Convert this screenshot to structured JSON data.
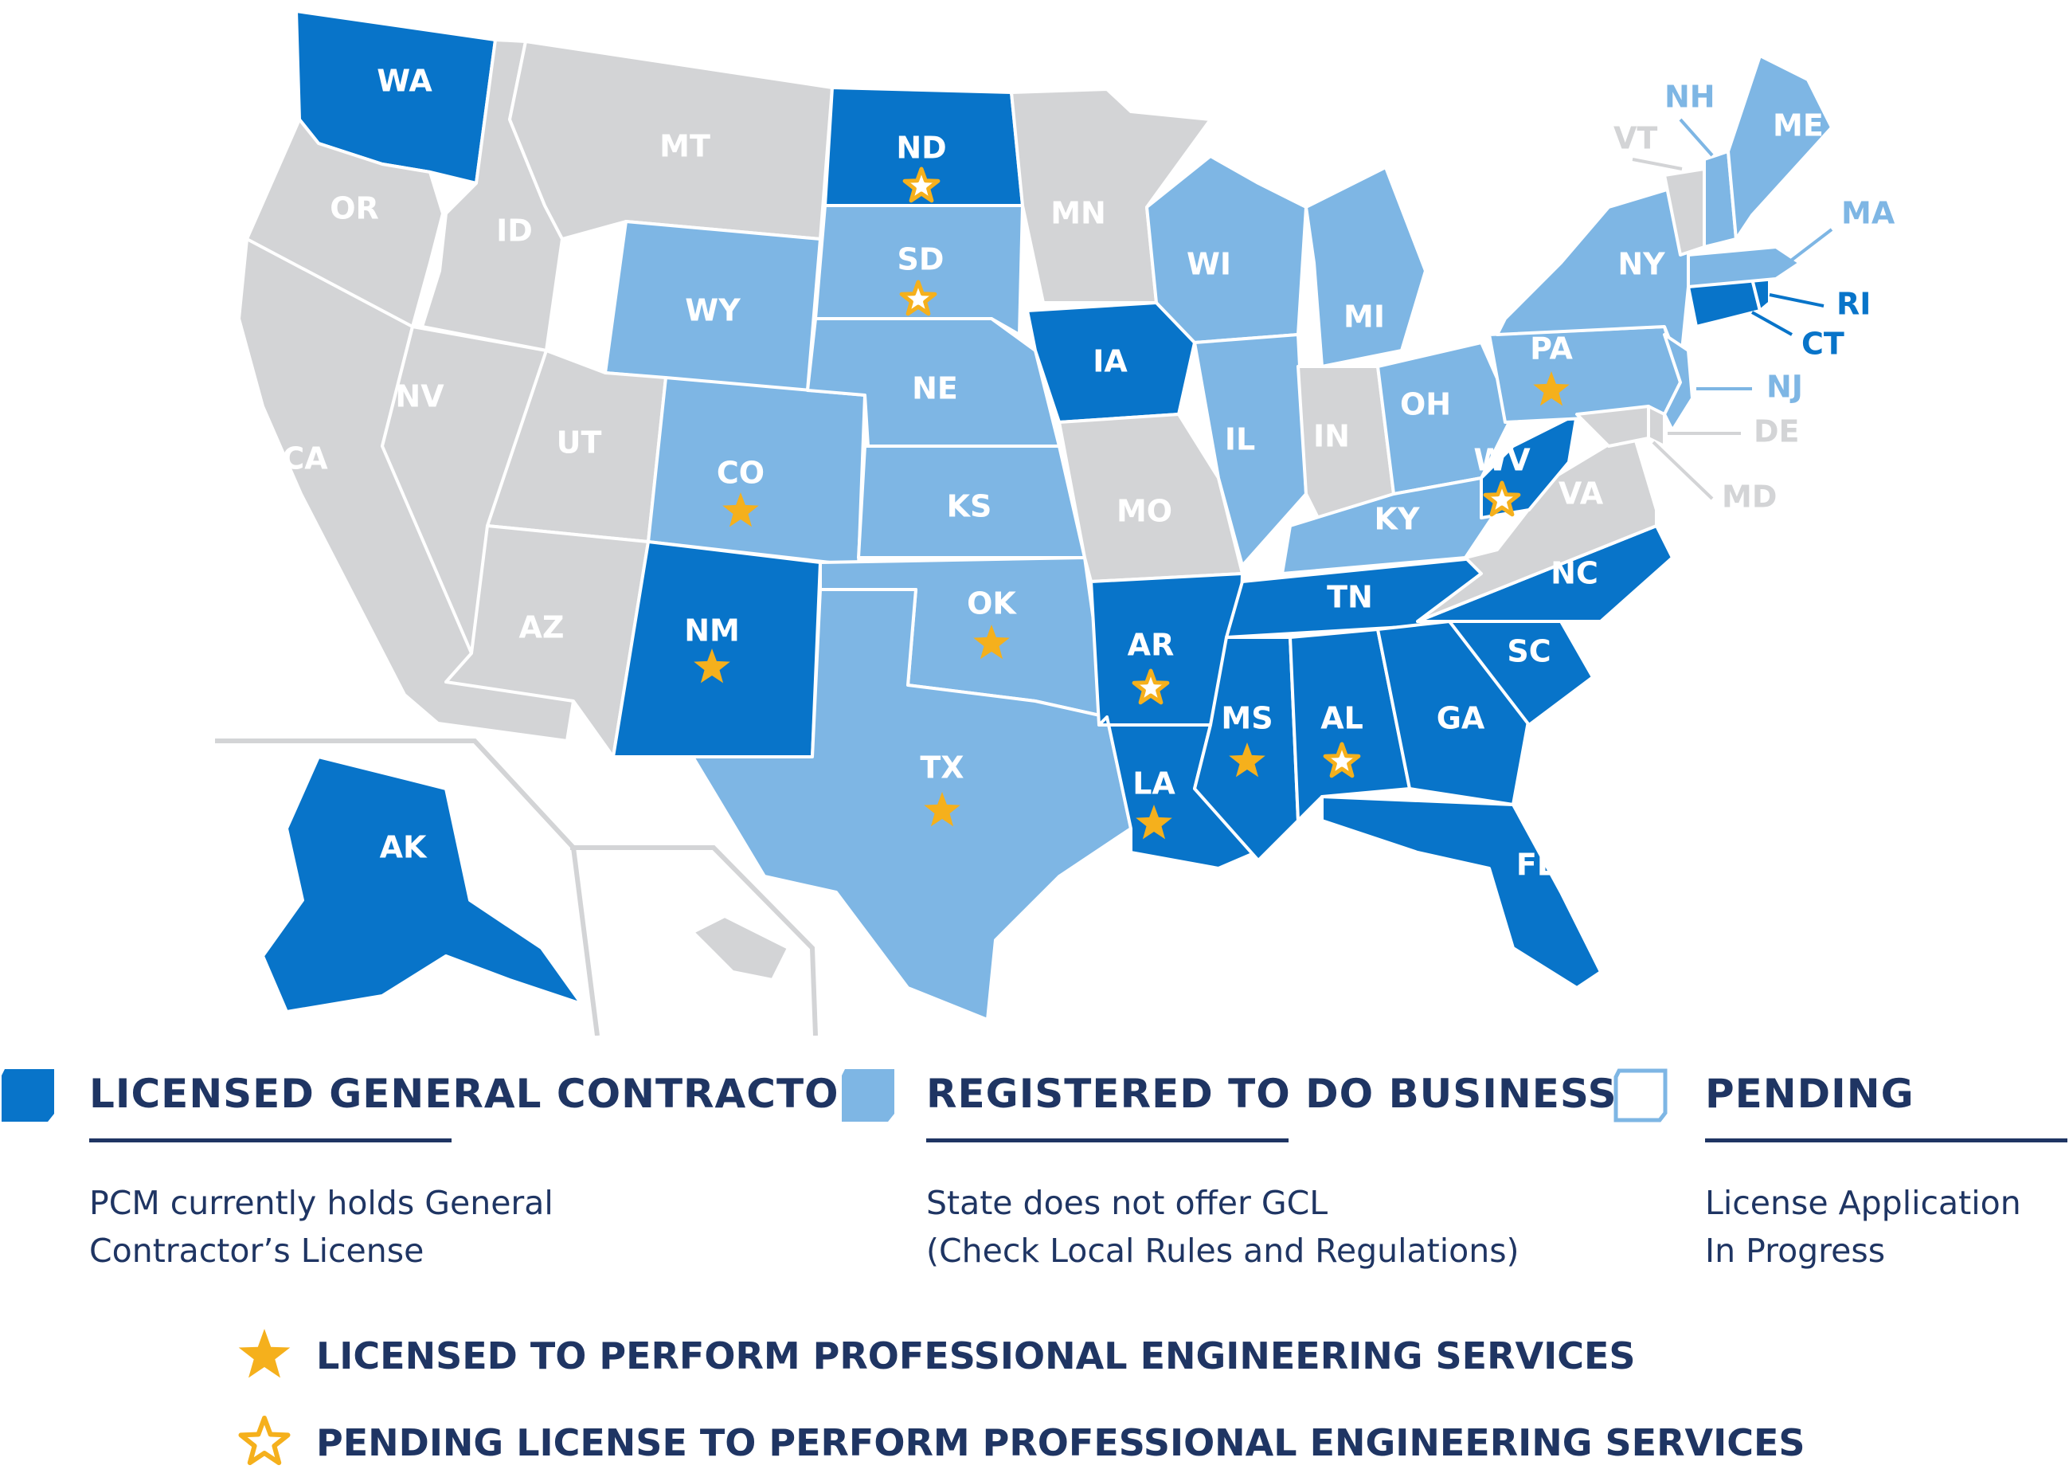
{
  "colors": {
    "licensed": "#0874c9",
    "registered": "#7eb6e4",
    "none": "#d3d4d6",
    "star": "#f5b01c",
    "navy": "#1f3563",
    "inset_line": "#d3d4d6"
  },
  "states": [
    {
      "id": "WA",
      "label": "WA",
      "status": "licensed",
      "star": "none"
    },
    {
      "id": "OR",
      "label": "OR",
      "status": "none",
      "star": "none"
    },
    {
      "id": "CA",
      "label": "CA",
      "status": "none",
      "star": "none"
    },
    {
      "id": "ID",
      "label": "ID",
      "status": "none",
      "star": "none"
    },
    {
      "id": "NV",
      "label": "NV",
      "status": "none",
      "star": "none"
    },
    {
      "id": "MT",
      "label": "MT",
      "status": "none",
      "star": "none"
    },
    {
      "id": "WY",
      "label": "WY",
      "status": "registered",
      "star": "none"
    },
    {
      "id": "UT",
      "label": "UT",
      "status": "none",
      "star": "none"
    },
    {
      "id": "AZ",
      "label": "AZ",
      "status": "none",
      "star": "none"
    },
    {
      "id": "CO",
      "label": "CO",
      "status": "registered",
      "star": "licensed"
    },
    {
      "id": "NM",
      "label": "NM",
      "status": "licensed",
      "star": "licensed"
    },
    {
      "id": "ND",
      "label": "ND",
      "status": "licensed",
      "star": "pending"
    },
    {
      "id": "SD",
      "label": "SD",
      "status": "registered",
      "star": "pending"
    },
    {
      "id": "NE",
      "label": "NE",
      "status": "registered",
      "star": "none"
    },
    {
      "id": "KS",
      "label": "KS",
      "status": "registered",
      "star": "none"
    },
    {
      "id": "OK",
      "label": "OK",
      "status": "registered",
      "star": "licensed"
    },
    {
      "id": "TX",
      "label": "TX",
      "status": "registered",
      "star": "licensed"
    },
    {
      "id": "MN",
      "label": "MN",
      "status": "none",
      "star": "none"
    },
    {
      "id": "IA",
      "label": "IA",
      "status": "licensed",
      "star": "none"
    },
    {
      "id": "MO",
      "label": "MO",
      "status": "none",
      "star": "none"
    },
    {
      "id": "AR",
      "label": "AR",
      "status": "licensed",
      "star": "pending"
    },
    {
      "id": "LA",
      "label": "LA",
      "status": "licensed",
      "star": "licensed"
    },
    {
      "id": "WI",
      "label": "WI",
      "status": "registered",
      "star": "none"
    },
    {
      "id": "IL",
      "label": "IL",
      "status": "registered",
      "star": "none"
    },
    {
      "id": "MI",
      "label": "MI",
      "status": "registered",
      "star": "none"
    },
    {
      "id": "IN",
      "label": "IN",
      "status": "none",
      "star": "none"
    },
    {
      "id": "OH",
      "label": "OH",
      "status": "registered",
      "star": "none"
    },
    {
      "id": "KY",
      "label": "KY",
      "status": "registered",
      "star": "none"
    },
    {
      "id": "TN",
      "label": "TN",
      "status": "licensed",
      "star": "none"
    },
    {
      "id": "MS",
      "label": "MS",
      "status": "licensed",
      "star": "licensed"
    },
    {
      "id": "AL",
      "label": "AL",
      "status": "licensed",
      "star": "pending"
    },
    {
      "id": "GA",
      "label": "GA",
      "status": "licensed",
      "star": "none"
    },
    {
      "id": "FL",
      "label": "FL",
      "status": "licensed",
      "star": "none"
    },
    {
      "id": "SC",
      "label": "SC",
      "status": "licensed",
      "star": "none"
    },
    {
      "id": "NC",
      "label": "NC",
      "status": "licensed",
      "star": "none"
    },
    {
      "id": "VA",
      "label": "VA",
      "status": "none",
      "star": "none"
    },
    {
      "id": "WV",
      "label": "WV",
      "status": "licensed",
      "star": "pending"
    },
    {
      "id": "PA",
      "label": "PA",
      "status": "registered",
      "star": "licensed"
    },
    {
      "id": "NY",
      "label": "NY",
      "status": "registered",
      "star": "none"
    },
    {
      "id": "NJ",
      "label": "NJ",
      "status": "registered",
      "star": "none"
    },
    {
      "id": "DE",
      "label": "DE",
      "status": "none",
      "star": "none"
    },
    {
      "id": "MD",
      "label": "MD",
      "status": "none",
      "star": "none"
    },
    {
      "id": "CT",
      "label": "CT",
      "status": "licensed",
      "star": "none"
    },
    {
      "id": "RI",
      "label": "RI",
      "status": "licensed",
      "star": "none"
    },
    {
      "id": "MA",
      "label": "MA",
      "status": "registered",
      "star": "none"
    },
    {
      "id": "VT",
      "label": "VT",
      "status": "none",
      "star": "none"
    },
    {
      "id": "NH",
      "label": "NH",
      "status": "registered",
      "star": "none"
    },
    {
      "id": "ME",
      "label": "ME",
      "status": "registered",
      "star": "none"
    },
    {
      "id": "AK",
      "label": "AK",
      "status": "licensed",
      "star": "none"
    },
    {
      "id": "HI",
      "label": "",
      "status": "none",
      "star": "none"
    }
  ],
  "legend": {
    "licensed": {
      "title": "LICENSED GENERAL CONTRACTOR",
      "desc1": "PCM currently holds General",
      "desc2": "Contractor’s License"
    },
    "registered": {
      "title": "REGISTERED TO DO BUSINESS",
      "desc1": "State does not offer GCL",
      "desc2": "(Check Local Rules and Regulations)"
    },
    "pending": {
      "title": "PENDING",
      "desc1": "License Application",
      "desc2": "In Progress"
    },
    "star_licensed": "LICENSED TO PERFORM PROFESSIONAL ENGINEERING SERVICES",
    "star_pending": "PENDING LICENSE TO PERFORM PROFESSIONAL ENGINEERING SERVICES"
  }
}
